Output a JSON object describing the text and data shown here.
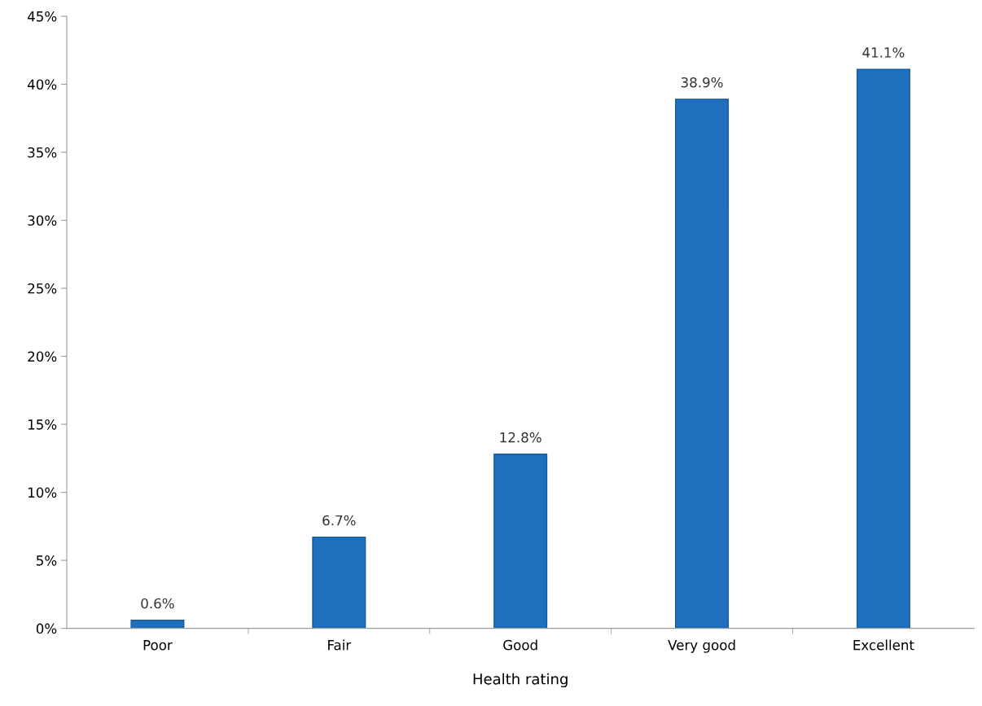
{
  "chart_data": {
    "type": "bar",
    "xlabel": "Health rating",
    "categories": [
      "Poor",
      "Fair",
      "Good",
      "Very good",
      "Excellent"
    ],
    "values": [
      0.6,
      6.7,
      12.8,
      38.9,
      41.1
    ],
    "value_labels": [
      "0.6%",
      "6.7%",
      "12.8%",
      "38.9%",
      "41.1%"
    ],
    "color": "#1f6fbf",
    "ylim": [
      0,
      45
    ],
    "yticks": [
      {
        "value": 0,
        "label": "0%"
      },
      {
        "value": 5,
        "label": "5%"
      },
      {
        "value": 10,
        "label": "10%"
      },
      {
        "value": 15,
        "label": "15%"
      },
      {
        "value": 20,
        "label": "20%"
      },
      {
        "value": 25,
        "label": "25%"
      },
      {
        "value": 30,
        "label": "30%"
      },
      {
        "value": 35,
        "label": "35%"
      },
      {
        "value": 40,
        "label": "40%"
      },
      {
        "value": 45,
        "label": "45%"
      }
    ],
    "grid": false
  }
}
